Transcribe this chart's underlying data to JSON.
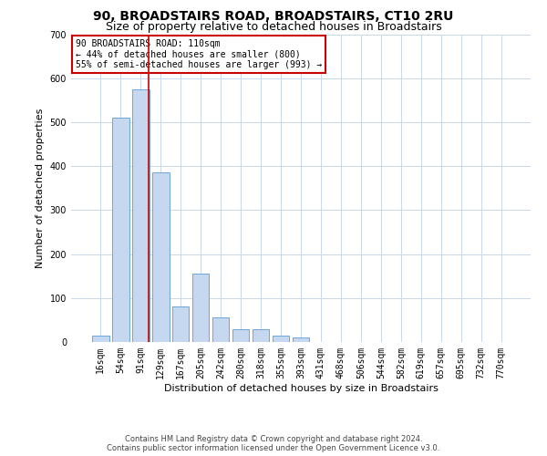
{
  "title": "90, BROADSTAIRS ROAD, BROADSTAIRS, CT10 2RU",
  "subtitle": "Size of property relative to detached houses in Broadstairs",
  "xlabel": "Distribution of detached houses by size in Broadstairs",
  "ylabel": "Number of detached properties",
  "bin_labels": [
    "16sqm",
    "54sqm",
    "91sqm",
    "129sqm",
    "167sqm",
    "205sqm",
    "242sqm",
    "280sqm",
    "318sqm",
    "355sqm",
    "393sqm",
    "431sqm",
    "468sqm",
    "506sqm",
    "544sqm",
    "582sqm",
    "619sqm",
    "657sqm",
    "695sqm",
    "732sqm",
    "770sqm"
  ],
  "bar_heights": [
    15,
    510,
    575,
    385,
    80,
    155,
    55,
    30,
    30,
    15,
    10,
    0,
    0,
    0,
    0,
    0,
    0,
    0,
    0,
    0,
    0
  ],
  "bar_color": "#c5d8f0",
  "bar_edge_color": "#5b9bd5",
  "property_line_x": 2.4,
  "annotation_text": "90 BROADSTAIRS ROAD: 110sqm\n← 44% of detached houses are smaller (800)\n55% of semi-detached houses are larger (993) →",
  "annotation_box_color": "#ffffff",
  "annotation_box_edge_color": "#cc0000",
  "ylim": [
    0,
    700
  ],
  "yticks": [
    0,
    100,
    200,
    300,
    400,
    500,
    600,
    700
  ],
  "footer_line1": "Contains HM Land Registry data © Crown copyright and database right 2024.",
  "footer_line2": "Contains public sector information licensed under the Open Government Licence v3.0.",
  "background_color": "#ffffff",
  "grid_color": "#c8d8e8",
  "title_fontsize": 10,
  "subtitle_fontsize": 9,
  "axis_label_fontsize": 8,
  "tick_fontsize": 7,
  "annot_fontsize": 7,
  "footer_fontsize": 6,
  "red_line_color": "#cc0000"
}
